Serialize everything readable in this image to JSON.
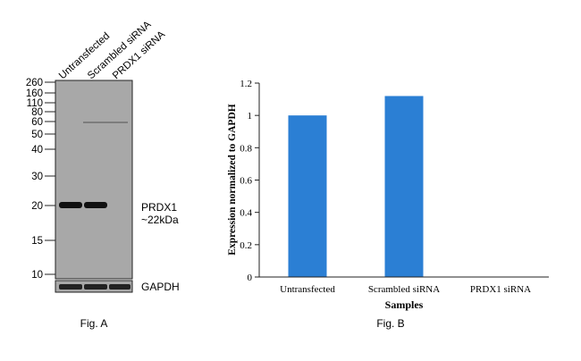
{
  "figure_a": {
    "caption": "Fig. A",
    "lane_labels": [
      "Untransfected",
      "Scrambled siRNA",
      "PRDX1 siRNA"
    ],
    "mw_markers": [
      "260",
      "160",
      "110",
      "80",
      "60",
      "50",
      "40",
      "30",
      "20",
      "15",
      "10"
    ],
    "band_label_line1": "PRDX1",
    "band_label_line2": "~22kDa",
    "loading_control_label": "GAPDH",
    "target_band_intensity": [
      1,
      1,
      0
    ],
    "gapdh_band_intensity": [
      1,
      1,
      1
    ]
  },
  "figure_b": {
    "caption": "Fig. B"
  },
  "chart_data": {
    "type": "bar",
    "title": "",
    "categories": [
      "Untransfected",
      "Scrambled siRNA",
      "PRDX1 siRNA"
    ],
    "values": [
      1.0,
      1.12,
      0.0
    ],
    "xlabel": "Samples",
    "ylabel": "Expression normalized to GAPDH",
    "ylim": [
      0,
      1.2
    ],
    "yticks": [
      "0",
      "0.2",
      "0.4",
      "0.6",
      "0.8",
      "1",
      "1.2"
    ],
    "bar_color": "#2b7fd4",
    "grid": false,
    "legend": "none"
  }
}
